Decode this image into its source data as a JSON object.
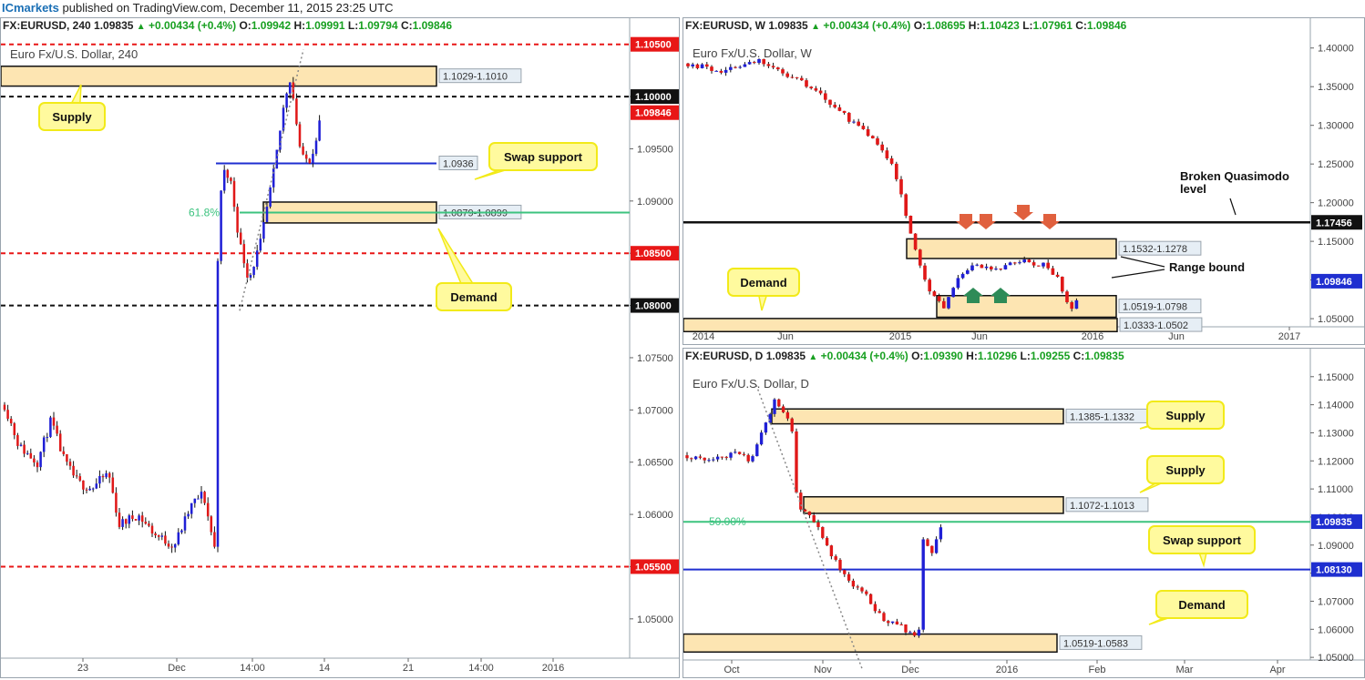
{
  "topbar": {
    "brand": "ICmarkets",
    "text": "published on TradingView.com, December 11, 2015 23:25 UTC"
  },
  "colors": {
    "bull": "#1f1fd6",
    "bear": "#e01818",
    "zone_fill": "#fde5b2",
    "callout_fill": "#fffa9e",
    "callout_stroke": "#f2ea19",
    "red_line": "#e81717",
    "blue_line": "#1f2fd0",
    "green_line": "#3cc37f"
  },
  "panels": [
    {
      "id": "h4",
      "header": {
        "sym": "FX:EURUSD, 240",
        "last": "1.09835",
        "chg": "+0.00434 (+0.4%)",
        "o": "1.09942",
        "h": "1.09991",
        "l": "1.09794",
        "c": "1.09846"
      },
      "watermark": "Euro Fx/U.S. Dollar, 240",
      "chart_data": {
        "type": "candlestick",
        "symbol": "EURUSD",
        "timeframe": "240",
        "ylim": [
          1.0465,
          1.1075
        ],
        "y_ticks": [
          "1.10000",
          "1.09500",
          "1.09000",
          "1.08500",
          "1.08000",
          "1.07500",
          "1.07000",
          "1.06500",
          "1.06000",
          "1.05500",
          "1.05000"
        ],
        "x_ticks": [
          "23",
          "Dec",
          "14:00",
          "14",
          "21",
          "14:00",
          "2016"
        ],
        "levels": [
          {
            "price": 1.105,
            "label": "1.10500",
            "style": "dash",
            "color": "red"
          },
          {
            "price": 1.1,
            "label": "1.10000",
            "style": "dash",
            "color": "black"
          },
          {
            "price": 1.0936,
            "label": "1.0936",
            "style": "solid",
            "color": "blue",
            "tag": "value"
          },
          {
            "price": 1.0889,
            "label": "61.8%",
            "style": "solid",
            "color": "green"
          },
          {
            "price": 1.085,
            "label": "1.08500",
            "style": "dash",
            "color": "red"
          },
          {
            "price": 1.08,
            "label": "1.08000",
            "style": "dash",
            "color": "black"
          },
          {
            "price": 1.055,
            "label": "1.05500",
            "style": "dash",
            "color": "red"
          }
        ],
        "current": {
          "price": 1.09846,
          "label": "1.09846"
        },
        "zones": [
          {
            "low": 1.101,
            "high": 1.1029,
            "label": "1.1029-1.1010"
          },
          {
            "low": 1.0879,
            "high": 1.0899,
            "label": "1.0879-1.0899"
          }
        ],
        "callouts": [
          {
            "text": "Supply"
          },
          {
            "text": "Swap support"
          },
          {
            "text": "Demand"
          }
        ]
      }
    },
    {
      "id": "w",
      "header": {
        "sym": "FX:EURUSD, W",
        "last": "1.09835",
        "chg": "+0.00434 (+0.4%)",
        "o": "1.08695",
        "h": "1.10423",
        "l": "1.07961",
        "c": "1.09846"
      },
      "watermark": "Euro Fx/U.S. Dollar, W",
      "chart_data": {
        "type": "candlestick",
        "symbol": "EURUSD",
        "timeframe": "W",
        "ylim": [
          1.023,
          1.415
        ],
        "y_ticks": [
          "1.40000",
          "1.35000",
          "1.30000",
          "1.25000",
          "1.20000",
          "1.15000",
          "1.10000",
          "1.05000"
        ],
        "x_ticks": [
          "2014",
          "Jun",
          "2015",
          "Jun",
          "2016",
          "Jun",
          "2017"
        ],
        "levels": [
          {
            "price": 1.17456,
            "label": "1.17456",
            "style": "solid",
            "color": "black"
          }
        ],
        "current": {
          "price": 1.09846,
          "label": "1.09846"
        },
        "zones": [
          {
            "low": 1.1278,
            "high": 1.1532,
            "label": "1.1532-1.1278"
          },
          {
            "low": 1.0519,
            "high": 1.0798,
            "label": "1.0519-1.0798"
          },
          {
            "low": 1.0333,
            "high": 1.0502,
            "label": "1.0333-1.0502"
          }
        ],
        "callouts": [
          {
            "text": "Demand"
          }
        ],
        "annotations": [
          "Broken Quasimodo level",
          "Range bound"
        ]
      }
    },
    {
      "id": "d",
      "header": {
        "sym": "FX:EURUSD, D",
        "last": "1.09835",
        "chg": "+0.00434 (+0.4%)",
        "o": "1.09390",
        "h": "1.10296",
        "l": "1.09255",
        "c": "1.09835"
      },
      "watermark": "Euro Fx/U.S. Dollar, D",
      "chart_data": {
        "type": "candlestick",
        "symbol": "EURUSD",
        "timeframe": "D",
        "ylim": [
          1.0455,
          1.1535
        ],
        "y_ticks": [
          "1.15000",
          "1.14000",
          "1.13000",
          "1.12000",
          "1.11000",
          "1.10000",
          "1.09000",
          "1.08000",
          "1.07000",
          "1.06000",
          "1.05000"
        ],
        "x_ticks": [
          "Oct",
          "Nov",
          "Dec",
          "2016",
          "Feb",
          "Mar",
          "Apr"
        ],
        "levels": [
          {
            "price": 1.0983,
            "label": "50.00%",
            "style": "solid",
            "color": "green"
          },
          {
            "price": 1.0813,
            "label": "1.08130",
            "style": "solid",
            "color": "blue"
          }
        ],
        "current": {
          "price": 1.09835,
          "label": "1.09835"
        },
        "zones": [
          {
            "low": 1.1332,
            "high": 1.1385,
            "label": "1.1385-1.1332"
          },
          {
            "low": 1.1013,
            "high": 1.1072,
            "label": "1.1072-1.1013"
          },
          {
            "low": 1.0519,
            "high": 1.0583,
            "label": "1.0519-1.0583"
          }
        ],
        "callouts": [
          {
            "text": "Supply"
          },
          {
            "text": "Supply"
          },
          {
            "text": "Swap support"
          },
          {
            "text": "Demand"
          }
        ]
      }
    }
  ]
}
